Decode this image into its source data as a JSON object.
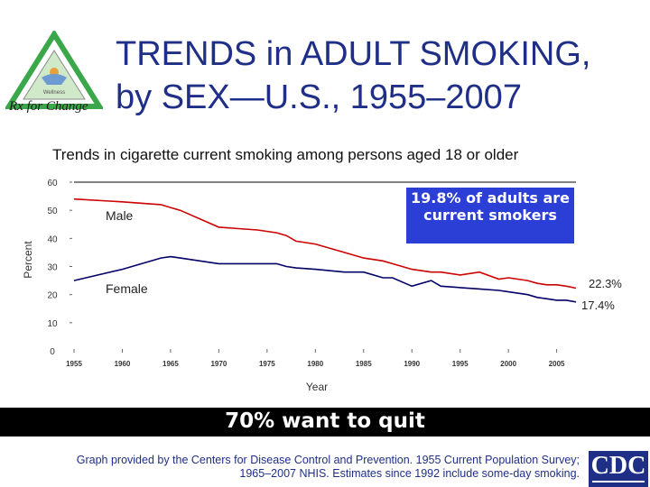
{
  "header": {
    "title_line1": "TRENDS in ADULT SMOKING,",
    "title_line2": "by SEX—U.S., 1955–2007",
    "logo_text": "Rx for Change",
    "logo_inner_text": "Wellness"
  },
  "chart_data": {
    "type": "line",
    "title": "Trends in cigarette current smoking among persons aged 18 or older",
    "xlabel": "Year",
    "ylabel": "Percent",
    "xlim": [
      1955,
      2007
    ],
    "ylim": [
      0,
      60
    ],
    "x_ticks": [
      "1955",
      "1960",
      "1965",
      "1970",
      "1975",
      "1980",
      "1985",
      "1990",
      "1995",
      "2000",
      "2005"
    ],
    "y_ticks": [
      "0",
      "10",
      "20",
      "30",
      "40",
      "50",
      "60"
    ],
    "series": [
      {
        "name": "Male",
        "color": "#cc0000",
        "points": [
          [
            1955,
            54
          ],
          [
            1960,
            53
          ],
          [
            1964,
            52
          ],
          [
            1965,
            51
          ],
          [
            1966,
            50
          ],
          [
            1970,
            44
          ],
          [
            1974,
            43
          ],
          [
            1976,
            42
          ],
          [
            1977,
            41
          ],
          [
            1978,
            39
          ],
          [
            1980,
            38
          ],
          [
            1983,
            35
          ],
          [
            1985,
            33
          ],
          [
            1987,
            32
          ],
          [
            1988,
            31
          ],
          [
            1990,
            29
          ],
          [
            1992,
            28
          ],
          [
            1993,
            28
          ],
          [
            1995,
            27
          ],
          [
            1997,
            28
          ],
          [
            1999,
            25.5
          ],
          [
            2000,
            26
          ],
          [
            2002,
            25
          ],
          [
            2003,
            24
          ],
          [
            2004,
            23.5
          ],
          [
            2005,
            23.5
          ],
          [
            2006,
            23
          ],
          [
            2007,
            22.3
          ]
        ]
      },
      {
        "name": "Female",
        "color": "#000066",
        "points": [
          [
            1955,
            25
          ],
          [
            1960,
            29
          ],
          [
            1964,
            33
          ],
          [
            1965,
            33.5
          ],
          [
            1966,
            33
          ],
          [
            1970,
            31
          ],
          [
            1974,
            31
          ],
          [
            1976,
            31
          ],
          [
            1977,
            30
          ],
          [
            1978,
            29.5
          ],
          [
            1980,
            29
          ],
          [
            1983,
            28
          ],
          [
            1985,
            28
          ],
          [
            1987,
            26
          ],
          [
            1988,
            26
          ],
          [
            1990,
            23
          ],
          [
            1992,
            25
          ],
          [
            1993,
            23
          ],
          [
            1995,
            22.5
          ],
          [
            1997,
            22
          ],
          [
            1999,
            21.5
          ],
          [
            2000,
            21
          ],
          [
            2002,
            20
          ],
          [
            2003,
            19
          ],
          [
            2004,
            18.5
          ],
          [
            2005,
            18
          ],
          [
            2006,
            18
          ],
          [
            2007,
            17.4
          ]
        ]
      }
    ],
    "series_labels": [
      "Male",
      "Female"
    ],
    "end_labels": [
      "22.3%",
      "17.4%"
    ],
    "callout": "19.8% of adults are current smokers",
    "grid": false
  },
  "banner": {
    "text": "70% want to quit"
  },
  "footnote": {
    "text": "Graph provided by the Centers for Disease Control and Prevention. 1955 Current Population Survey; 1965–2007 NHIS. Estimates since 1992 include some-day smoking."
  },
  "cdc_logo": {
    "text": "CDC"
  }
}
